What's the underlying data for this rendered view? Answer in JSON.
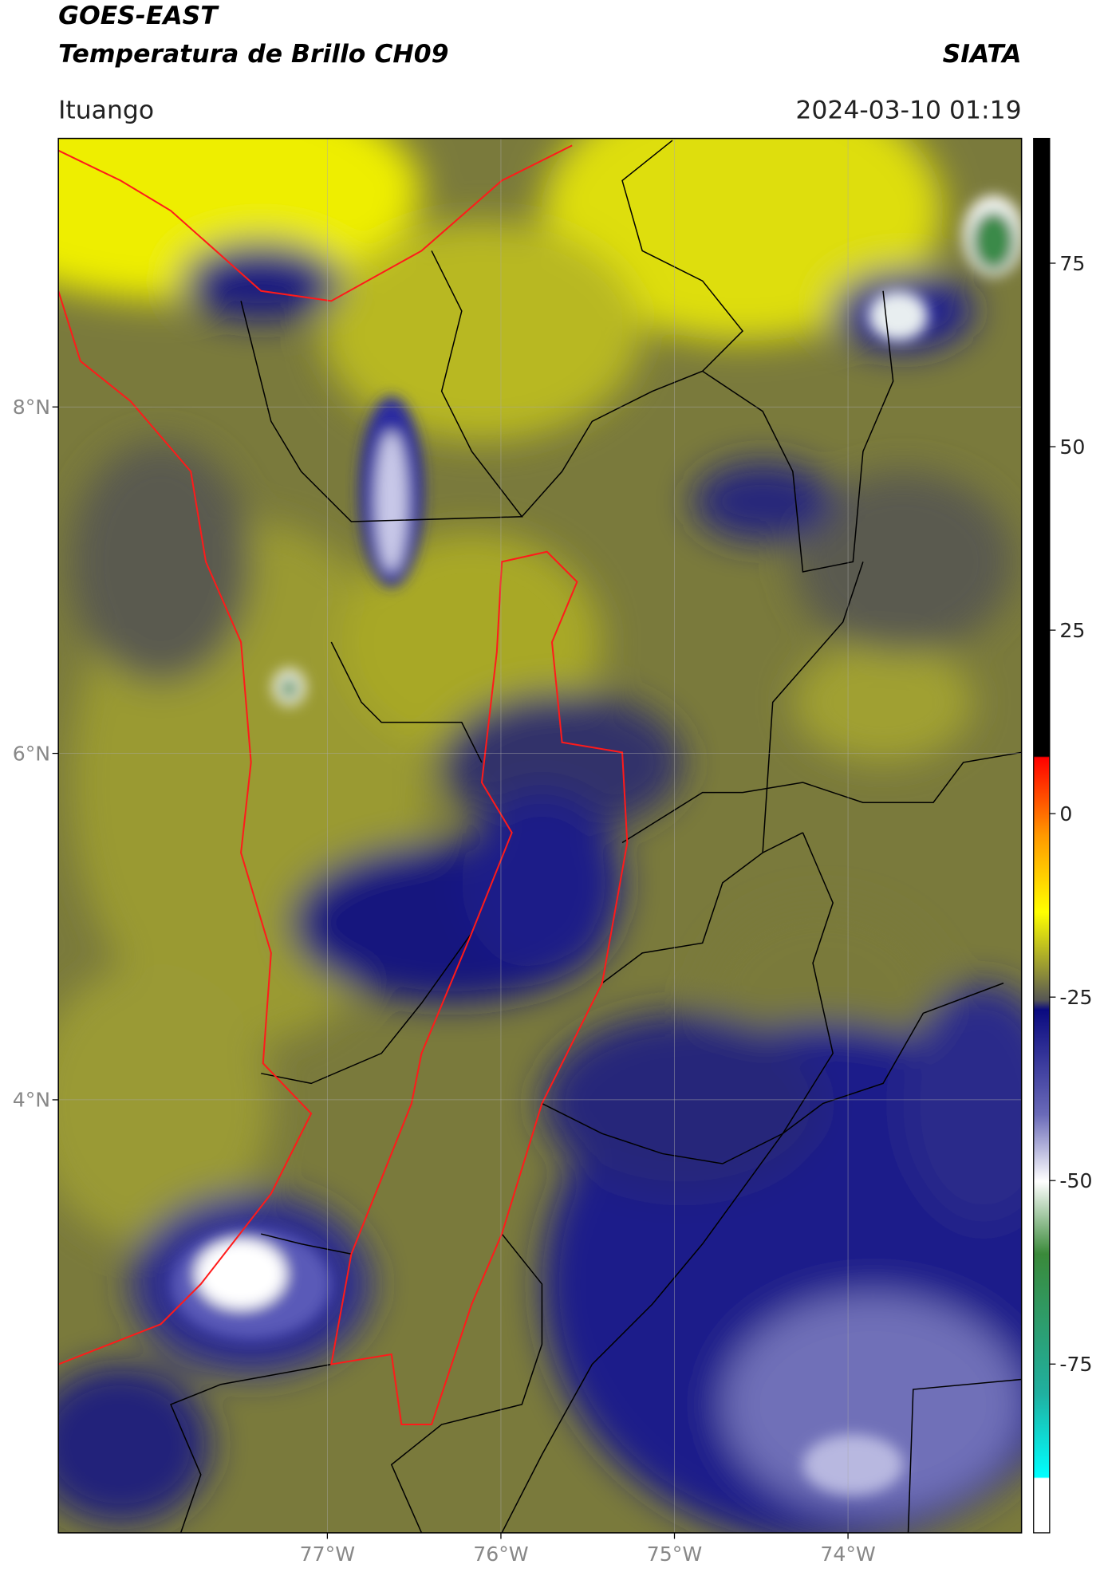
{
  "header": {
    "title": "GOES-EAST",
    "subtitle": "Temperatura de Brillo CH09",
    "source": "SIATA",
    "location": "Ituango",
    "datetime": "2024-03-10 01:19"
  },
  "map": {
    "xlim": [
      -78.55,
      -73.0
    ],
    "ylim": [
      1.5,
      9.55
    ],
    "xticks": [
      {
        "value": -77,
        "label": "77°W"
      },
      {
        "value": -76,
        "label": "76°W"
      },
      {
        "value": -75,
        "label": "75°W"
      },
      {
        "value": -74,
        "label": "74°W"
      }
    ],
    "yticks": [
      {
        "value": 8,
        "label": "8°N"
      },
      {
        "value": 6,
        "label": "6°N"
      },
      {
        "value": 4,
        "label": "4°N"
      }
    ],
    "grid": true,
    "colorbar": {
      "lim": [
        -98,
        92
      ],
      "ticks": [
        75,
        50,
        25,
        0,
        -25,
        -50,
        -75
      ]
    }
  }
}
